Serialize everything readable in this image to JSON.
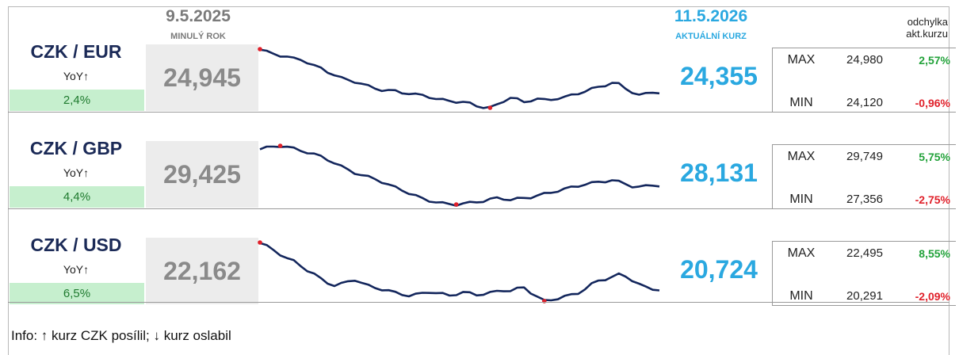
{
  "header": {
    "previous_date": "9.5.2025",
    "previous_label": "MINULÝ ROK",
    "current_date": "11.5.2026",
    "current_label": "AKTUÁLNÍ KURZ",
    "deviation_line1": "odchylka",
    "deviation_line2": "akt.kurzu"
  },
  "rows": [
    {
      "pair": "CZK / EUR",
      "yoy_label": "YoY↑",
      "yoy_value": "2,4%",
      "previous": "24,945",
      "current": "24,355",
      "max_label": "MAX",
      "max_value": "24,980",
      "max_dev": "2,57%",
      "min_label": "MIN",
      "min_value": "24,120",
      "min_dev": "-0,96%",
      "series": [
        24.97,
        24.93,
        24.9,
        24.88,
        24.86,
        24.83,
        24.82,
        24.78,
        24.73,
        24.69,
        24.64,
        24.6,
        24.55,
        24.52,
        24.5,
        24.47,
        24.43,
        24.4,
        24.38,
        24.37,
        24.36,
        24.34,
        24.33,
        24.31,
        24.3,
        24.28,
        24.25,
        24.23,
        24.22,
        24.21,
        24.2,
        24.18,
        24.15,
        24.13,
        24.12,
        24.16,
        24.22,
        24.27,
        24.24,
        24.2,
        24.23,
        24.25,
        24.23,
        24.24,
        24.26,
        24.27,
        24.3,
        24.33,
        24.36,
        24.39,
        24.42,
        24.45,
        24.48,
        24.46,
        24.4,
        24.35,
        24.3,
        24.32,
        24.35,
        24.34
      ],
      "max_index": 0,
      "min_index": 34
    },
    {
      "pair": "CZK / GBP",
      "yoy_label": "YoY↑",
      "yoy_value": "4,4%",
      "previous": "29,425",
      "current": "28,131",
      "max_label": "MAX",
      "max_value": "29,749",
      "max_dev": "5,75%",
      "min_label": "MIN",
      "min_value": "27,356",
      "min_dev": "-2,75%",
      "series": [
        29.62,
        29.66,
        29.7,
        29.74,
        29.7,
        29.62,
        29.55,
        29.48,
        29.4,
        29.3,
        29.18,
        29.05,
        28.9,
        28.77,
        28.65,
        28.55,
        28.47,
        28.4,
        28.28,
        28.15,
        28.05,
        27.95,
        27.82,
        27.7,
        27.6,
        27.52,
        27.45,
        27.4,
        27.38,
        27.36,
        27.39,
        27.42,
        27.47,
        27.5,
        27.56,
        27.62,
        27.6,
        27.55,
        27.58,
        27.62,
        27.66,
        27.72,
        27.78,
        27.85,
        27.92,
        27.98,
        28.05,
        28.12,
        28.18,
        28.22,
        28.27,
        28.31,
        28.34,
        28.27,
        28.2,
        28.1,
        28.06,
        28.1,
        28.16,
        28.12
      ],
      "max_index": 3,
      "min_index": 29
    },
    {
      "pair": "CZK / USD",
      "yoy_label": "YoY↑",
      "yoy_value": "6,5%",
      "previous": "22,162",
      "current": "20,724",
      "max_label": "MAX",
      "max_value": "22,495",
      "max_dev": "8,55%",
      "min_label": "MIN",
      "min_value": "20,291",
      "min_dev": "-2,09%",
      "series": [
        22.49,
        22.35,
        22.2,
        22.05,
        21.9,
        21.78,
        21.62,
        21.45,
        21.3,
        21.12,
        20.98,
        20.88,
        20.93,
        21.02,
        21.1,
        20.98,
        20.86,
        20.79,
        20.74,
        20.68,
        20.6,
        20.55,
        20.5,
        20.53,
        20.58,
        20.64,
        20.6,
        20.55,
        20.5,
        20.56,
        20.62,
        20.58,
        20.53,
        20.56,
        20.6,
        20.65,
        20.7,
        20.68,
        20.75,
        20.8,
        20.62,
        20.45,
        20.29,
        20.34,
        20.4,
        20.46,
        20.52,
        20.6,
        20.75,
        20.92,
        21.05,
        21.12,
        21.2,
        21.28,
        21.22,
        21.08,
        20.92,
        20.8,
        20.75,
        20.72
      ],
      "max_index": 0,
      "min_index": 42
    }
  ],
  "info_text": "Info: ↑ kurz CZK posílil; ↓ kurz oslabil",
  "colors": {
    "line": "#13265c",
    "marker": "#e0202a",
    "accent": "#2aa8e0",
    "yoy_bg": "#c6efce",
    "positive": "#22a23a",
    "negative": "#e0202a"
  }
}
